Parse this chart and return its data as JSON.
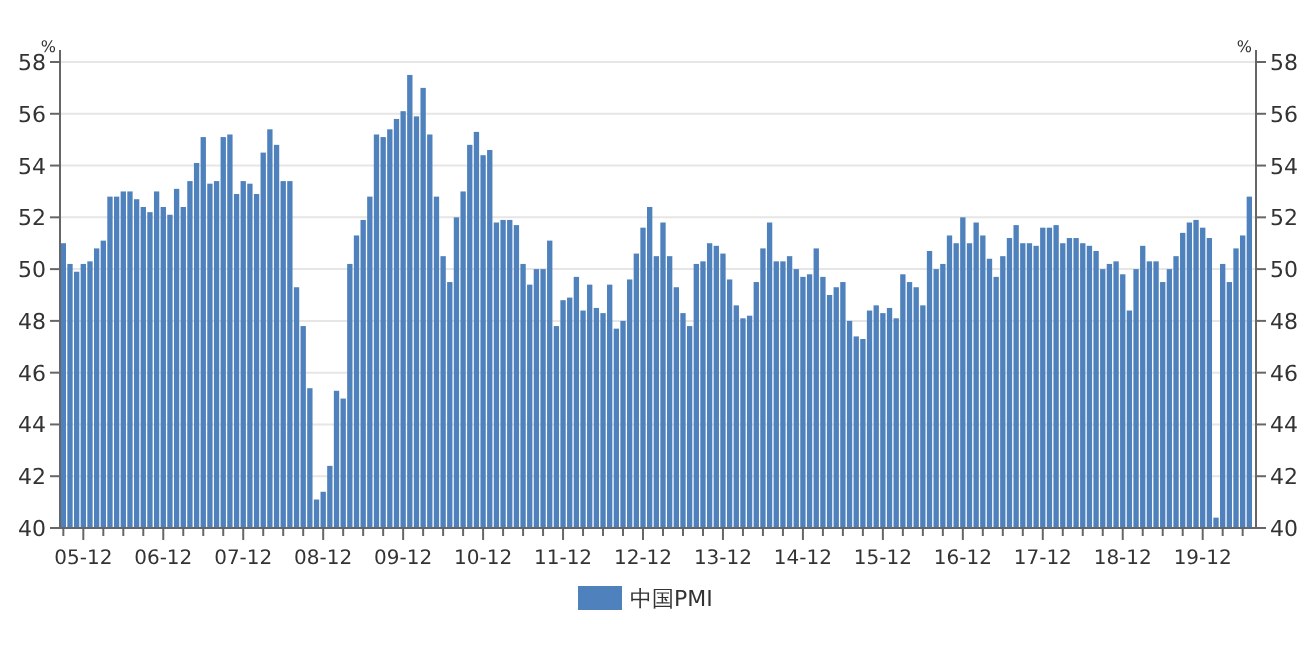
{
  "chart_data": {
    "type": "bar",
    "ylabel": "%",
    "y2label": "%",
    "x": [
      "2005-09",
      "2005-10",
      "2005-11",
      "2005-12",
      "2006-01",
      "2006-02",
      "2006-03",
      "2006-04",
      "2006-05",
      "2006-06",
      "2006-07",
      "2006-08",
      "2006-09",
      "2006-10",
      "2006-11",
      "2006-12",
      "2007-01",
      "2007-02",
      "2007-03",
      "2007-04",
      "2007-05",
      "2007-06",
      "2007-07",
      "2007-08",
      "2007-09",
      "2007-10",
      "2007-11",
      "2007-12",
      "2008-01",
      "2008-02",
      "2008-03",
      "2008-04",
      "2008-05",
      "2008-06",
      "2008-07",
      "2008-08",
      "2008-09",
      "2008-10",
      "2008-11",
      "2008-12",
      "2009-01",
      "2009-02",
      "2009-03",
      "2009-04",
      "2009-05",
      "2009-06",
      "2009-07",
      "2009-08",
      "2009-09",
      "2009-10",
      "2009-11",
      "2009-12",
      "2010-01",
      "2010-02",
      "2010-03",
      "2010-04",
      "2010-05",
      "2010-06",
      "2010-07",
      "2010-08",
      "2010-09",
      "2010-10",
      "2010-11",
      "2010-12",
      "2011-01",
      "2011-02",
      "2011-03",
      "2011-04",
      "2011-05",
      "2011-06",
      "2011-07",
      "2011-08",
      "2011-09",
      "2011-10",
      "2011-11",
      "2011-12",
      "2012-01",
      "2012-02",
      "2012-03",
      "2012-04",
      "2012-05",
      "2012-06",
      "2012-07",
      "2012-08",
      "2012-09",
      "2012-10",
      "2012-11",
      "2012-12",
      "2013-01",
      "2013-02",
      "2013-03",
      "2013-04",
      "2013-05",
      "2013-06",
      "2013-07",
      "2013-08",
      "2013-09",
      "2013-10",
      "2013-11",
      "2013-12",
      "2014-01",
      "2014-02",
      "2014-03",
      "2014-04",
      "2014-05",
      "2014-06",
      "2014-07",
      "2014-08",
      "2014-09",
      "2014-10",
      "2014-11",
      "2014-12",
      "2015-01",
      "2015-02",
      "2015-03",
      "2015-04",
      "2015-05",
      "2015-06",
      "2015-07",
      "2015-08",
      "2015-09",
      "2015-10",
      "2015-11",
      "2015-12",
      "2016-01",
      "2016-02",
      "2016-03",
      "2016-04",
      "2016-05",
      "2016-06",
      "2016-07",
      "2016-08",
      "2016-09",
      "2016-10",
      "2016-11",
      "2016-12",
      "2017-01",
      "2017-02",
      "2017-03",
      "2017-04",
      "2017-05",
      "2017-06",
      "2017-07",
      "2017-08",
      "2017-09",
      "2017-10",
      "2017-11",
      "2017-12",
      "2018-01",
      "2018-02",
      "2018-03",
      "2018-04",
      "2018-05",
      "2018-06",
      "2018-07",
      "2018-08",
      "2018-09",
      "2018-10",
      "2018-11",
      "2018-12",
      "2019-01",
      "2019-02",
      "2019-03",
      "2019-04",
      "2019-05",
      "2019-06",
      "2019-07",
      "2019-08",
      "2019-09",
      "2019-10",
      "2019-11",
      "2019-12",
      "2020-01",
      "2020-02",
      "2020-03",
      "2020-04",
      "2020-05",
      "2020-06",
      "2020-07"
    ],
    "series": [
      {
        "name": "中国PMI",
        "color": "#4f81bd",
        "values": [
          51.0,
          50.2,
          49.9,
          50.2,
          50.3,
          50.8,
          51.1,
          52.8,
          52.8,
          53.0,
          53.0,
          52.7,
          52.4,
          52.2,
          53.0,
          52.4,
          52.1,
          53.1,
          52.4,
          53.4,
          54.1,
          55.1,
          53.3,
          53.4,
          55.1,
          55.2,
          52.9,
          53.4,
          53.3,
          52.9,
          54.5,
          55.4,
          54.8,
          53.4,
          53.4,
          49.3,
          47.8,
          45.4,
          41.1,
          41.4,
          42.4,
          45.3,
          45.0,
          50.2,
          51.3,
          51.9,
          52.8,
          55.2,
          55.1,
          55.4,
          55.8,
          56.1,
          57.5,
          55.9,
          57.0,
          55.2,
          52.8,
          50.5,
          49.5,
          52.0,
          53.0,
          54.8,
          55.3,
          54.4,
          54.6,
          51.8,
          51.9,
          51.9,
          51.7,
          50.2,
          49.4,
          50.0,
          50.0,
          51.1,
          47.8,
          48.8,
          48.9,
          49.7,
          48.4,
          49.4,
          48.5,
          48.3,
          49.4,
          47.7,
          48.0,
          49.6,
          50.6,
          51.6,
          52.4,
          50.5,
          51.8,
          50.5,
          49.3,
          48.3,
          47.8,
          50.2,
          50.3,
          51.0,
          50.9,
          50.6,
          49.6,
          48.6,
          48.1,
          48.2,
          49.5,
          50.8,
          51.8,
          50.3,
          50.3,
          50.5,
          50.0,
          49.7,
          49.8,
          50.8,
          49.7,
          49.0,
          49.3,
          49.5,
          48.0,
          47.4,
          47.3,
          48.4,
          48.6,
          48.3,
          48.5,
          48.1,
          49.8,
          49.5,
          49.3,
          48.6,
          50.7,
          50.0,
          50.2,
          51.3,
          51.0,
          52.0,
          51.0,
          51.8,
          51.3,
          50.4,
          49.7,
          50.5,
          51.2,
          51.7,
          51.0,
          51.0,
          50.9,
          51.6,
          51.6,
          51.7,
          51.0,
          51.2,
          51.2,
          51.0,
          50.9,
          50.7,
          50.0,
          50.2,
          50.3,
          49.8,
          48.4,
          50.0,
          50.9,
          50.3,
          50.3,
          49.5,
          50.0,
          50.5,
          51.4,
          51.8,
          51.9,
          51.6,
          51.2,
          40.4,
          50.2,
          49.5,
          50.8,
          51.3,
          52.8
        ]
      }
    ],
    "xlim": [
      "2005-08-16",
      "2020-08-01"
    ],
    "xticks": [
      {
        "value": "2005-09",
        "label": null
      },
      {
        "value": "2005-12",
        "label": "05-12"
      },
      {
        "value": "2006-03",
        "label": null
      },
      {
        "value": "2006-06",
        "label": null
      },
      {
        "value": "2006-09",
        "label": null
      },
      {
        "value": "2006-12",
        "label": "06-12"
      },
      {
        "value": "2007-03",
        "label": null
      },
      {
        "value": "2007-06",
        "label": null
      },
      {
        "value": "2007-09",
        "label": null
      },
      {
        "value": "2007-12",
        "label": "07-12"
      },
      {
        "value": "2008-03",
        "label": null
      },
      {
        "value": "2008-06",
        "label": null
      },
      {
        "value": "2008-09",
        "label": null
      },
      {
        "value": "2008-12",
        "label": "08-12"
      },
      {
        "value": "2009-03",
        "label": null
      },
      {
        "value": "2009-06",
        "label": null
      },
      {
        "value": "2009-09",
        "label": null
      },
      {
        "value": "2009-12",
        "label": "09-12"
      },
      {
        "value": "2010-03",
        "label": null
      },
      {
        "value": "2010-06",
        "label": null
      },
      {
        "value": "2010-09",
        "label": null
      },
      {
        "value": "2010-12",
        "label": "10-12"
      },
      {
        "value": "2011-03",
        "label": null
      },
      {
        "value": "2011-06",
        "label": null
      },
      {
        "value": "2011-09",
        "label": null
      },
      {
        "value": "2011-12",
        "label": "11-12"
      },
      {
        "value": "2012-03",
        "label": null
      },
      {
        "value": "2012-06",
        "label": null
      },
      {
        "value": "2012-09",
        "label": null
      },
      {
        "value": "2012-12",
        "label": "12-12"
      },
      {
        "value": "2013-03",
        "label": null
      },
      {
        "value": "2013-06",
        "label": null
      },
      {
        "value": "2013-09",
        "label": null
      },
      {
        "value": "2013-12",
        "label": "13-12"
      },
      {
        "value": "2014-03",
        "label": null
      },
      {
        "value": "2014-06",
        "label": null
      },
      {
        "value": "2014-09",
        "label": null
      },
      {
        "value": "2014-12",
        "label": "14-12"
      },
      {
        "value": "2015-03",
        "label": null
      },
      {
        "value": "2015-06",
        "label": null
      },
      {
        "value": "2015-09",
        "label": null
      },
      {
        "value": "2015-12",
        "label": "15-12"
      },
      {
        "value": "2016-03",
        "label": null
      },
      {
        "value": "2016-06",
        "label": null
      },
      {
        "value": "2016-09",
        "label": null
      },
      {
        "value": "2016-12",
        "label": "16-12"
      },
      {
        "value": "2017-03",
        "label": null
      },
      {
        "value": "2017-06",
        "label": null
      },
      {
        "value": "2017-09",
        "label": null
      },
      {
        "value": "2017-12",
        "label": "17-12"
      },
      {
        "value": "2018-03",
        "label": null
      },
      {
        "value": "2018-06",
        "label": null
      },
      {
        "value": "2018-09",
        "label": null
      },
      {
        "value": "2018-12",
        "label": "18-12"
      },
      {
        "value": "2019-03",
        "label": null
      },
      {
        "value": "2019-06",
        "label": null
      },
      {
        "value": "2019-09",
        "label": null
      },
      {
        "value": "2019-12",
        "label": "19-12"
      },
      {
        "value": "2020-03",
        "label": null
      },
      {
        "value": "2020-06",
        "label": null
      }
    ],
    "ylim": [
      40,
      58
    ],
    "yticks": [
      40,
      42,
      44,
      46,
      48,
      50,
      52,
      54,
      56,
      58
    ],
    "y2lim": [
      40,
      58
    ],
    "y2ticks": [
      40,
      42,
      44,
      46,
      48,
      50,
      52,
      54,
      56,
      58
    ],
    "grid": "y",
    "legend": "bottom"
  }
}
